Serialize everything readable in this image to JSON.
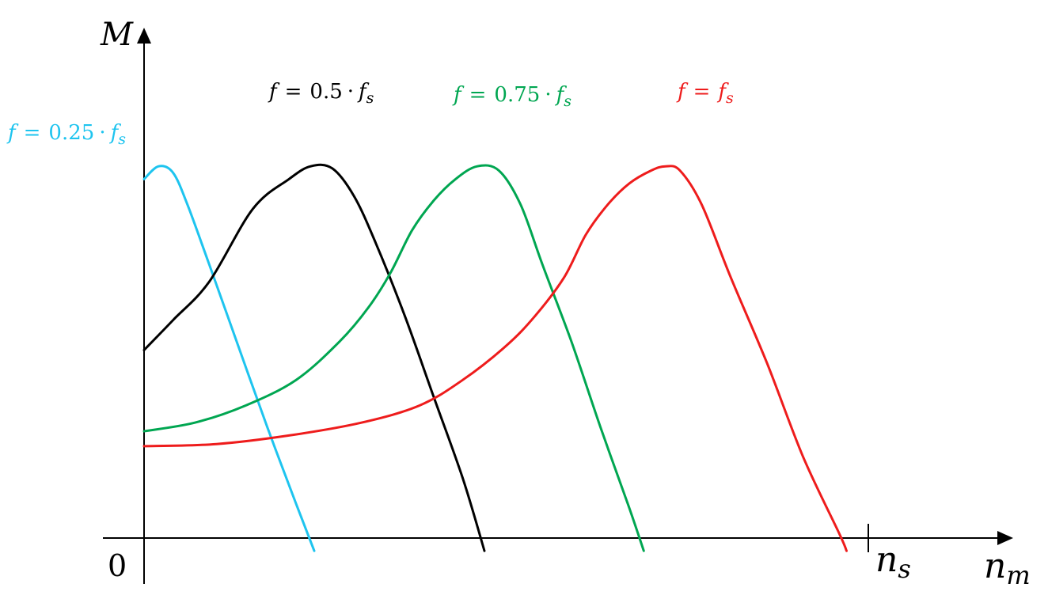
{
  "chart_data": {
    "type": "line",
    "title": "",
    "xlabel": "n_m",
    "ylabel": "M",
    "origin_label": "0",
    "x_tick_label": "n_s",
    "series": [
      {
        "name": "f = 0.25 · f_s",
        "label_parts": {
          "f": "f",
          "eq": "=",
          "coef": "0.25",
          "dot": "·",
          "fs": "f",
          "sub": "s"
        },
        "color": "#1EC4EF",
        "points": [
          [
            0.0,
            0.84
          ],
          [
            0.02,
            0.87
          ],
          [
            0.04,
            0.855
          ],
          [
            0.06,
            0.78
          ],
          [
            0.09,
            0.64
          ],
          [
            0.13,
            0.45
          ],
          [
            0.17,
            0.26
          ],
          [
            0.21,
            0.08
          ],
          [
            0.235,
            -0.03
          ]
        ]
      },
      {
        "name": "f = 0.5 · f_s",
        "label_parts": {
          "f": "f",
          "eq": "=",
          "coef": "0.5",
          "dot": "·",
          "fs": "f",
          "sub": "s"
        },
        "color": "#000000",
        "points": [
          [
            0.0,
            0.44
          ],
          [
            0.04,
            0.51
          ],
          [
            0.09,
            0.6
          ],
          [
            0.15,
            0.77
          ],
          [
            0.2,
            0.84
          ],
          [
            0.23,
            0.87
          ],
          [
            0.26,
            0.865
          ],
          [
            0.29,
            0.8
          ],
          [
            0.32,
            0.69
          ],
          [
            0.36,
            0.52
          ],
          [
            0.4,
            0.33
          ],
          [
            0.44,
            0.14
          ],
          [
            0.47,
            -0.03
          ]
        ]
      },
      {
        "name": "f = 0.75 · f_s",
        "label_parts": {
          "f": "f",
          "eq": "=",
          "coef": "0.75",
          "dot": "·",
          "fs": "f",
          "sub": "s"
        },
        "color": "#00A651",
        "points": [
          [
            0.0,
            0.25
          ],
          [
            0.07,
            0.27
          ],
          [
            0.14,
            0.31
          ],
          [
            0.21,
            0.37
          ],
          [
            0.27,
            0.46
          ],
          [
            0.31,
            0.54
          ],
          [
            0.34,
            0.62
          ],
          [
            0.37,
            0.72
          ],
          [
            0.4,
            0.79
          ],
          [
            0.43,
            0.84
          ],
          [
            0.46,
            0.87
          ],
          [
            0.49,
            0.86
          ],
          [
            0.52,
            0.78
          ],
          [
            0.55,
            0.64
          ],
          [
            0.59,
            0.46
          ],
          [
            0.63,
            0.26
          ],
          [
            0.67,
            0.07
          ],
          [
            0.69,
            -0.03
          ]
        ]
      },
      {
        "name": "f = f_s",
        "label_parts": {
          "f": "f",
          "eq": "=",
          "coef": "",
          "dot": "",
          "fs": "f",
          "sub": "s"
        },
        "color": "#EE1C1C",
        "points": [
          [
            0.0,
            0.215
          ],
          [
            0.1,
            0.22
          ],
          [
            0.2,
            0.24
          ],
          [
            0.3,
            0.27
          ],
          [
            0.38,
            0.31
          ],
          [
            0.44,
            0.37
          ],
          [
            0.5,
            0.45
          ],
          [
            0.54,
            0.52
          ],
          [
            0.58,
            0.61
          ],
          [
            0.61,
            0.71
          ],
          [
            0.64,
            0.78
          ],
          [
            0.67,
            0.83
          ],
          [
            0.7,
            0.86
          ],
          [
            0.72,
            0.87
          ],
          [
            0.74,
            0.86
          ],
          [
            0.77,
            0.78
          ],
          [
            0.81,
            0.61
          ],
          [
            0.86,
            0.41
          ],
          [
            0.91,
            0.19
          ],
          [
            0.96,
            0.01
          ],
          [
            0.97,
            -0.03
          ]
        ]
      }
    ],
    "xlim": [
      0,
      1
    ],
    "ylim": [
      0,
      1
    ],
    "grid": false,
    "legend": "labels placed directly above each curve"
  }
}
